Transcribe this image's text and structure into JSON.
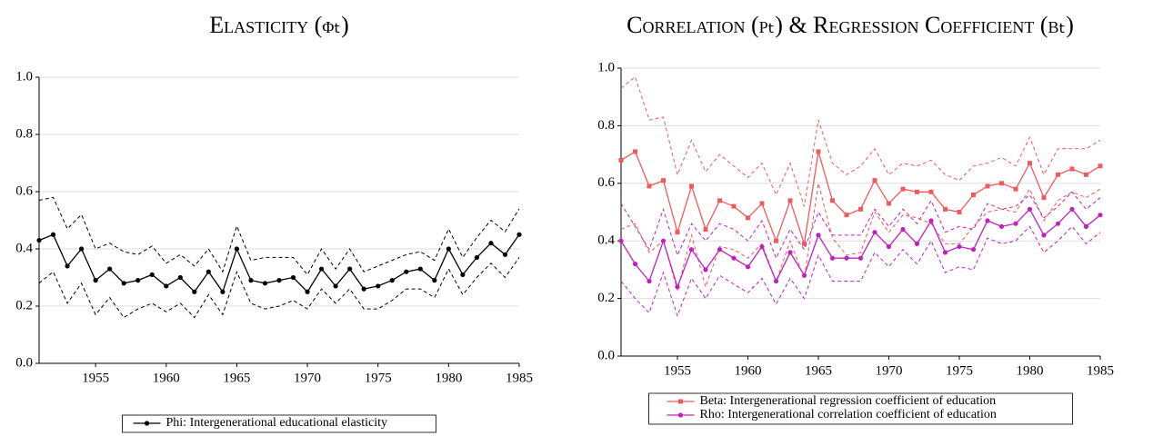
{
  "chart_data": [
    {
      "type": "line",
      "title": "Elasticity (ϕₜ)",
      "x": [
        1951,
        1952,
        1953,
        1954,
        1955,
        1956,
        1957,
        1958,
        1959,
        1960,
        1961,
        1962,
        1963,
        1964,
        1965,
        1966,
        1967,
        1968,
        1969,
        1970,
        1971,
        1972,
        1973,
        1974,
        1975,
        1976,
        1977,
        1978,
        1979,
        1980,
        1981,
        1982,
        1983,
        1984,
        1985
      ],
      "xlim": [
        1951,
        1985
      ],
      "xticks": [
        1955,
        1960,
        1965,
        1970,
        1975,
        1980,
        1985
      ],
      "ylim": [
        0,
        1
      ],
      "yticks": [
        {
          "value": 0,
          "label": "0.0"
        },
        0.2,
        0.4,
        0.6,
        0.8,
        {
          "value": 1,
          "label": "1.0"
        }
      ],
      "grid": true,
      "series": [
        {
          "name": "Phi: Intergenerational educational elasticity",
          "color": "#000000",
          "marker": "circle",
          "values": [
            0.43,
            0.45,
            0.34,
            0.4,
            0.29,
            0.33,
            0.28,
            0.29,
            0.31,
            0.27,
            0.3,
            0.25,
            0.32,
            0.25,
            0.4,
            0.29,
            0.28,
            0.29,
            0.3,
            0.25,
            0.33,
            0.27,
            0.33,
            0.26,
            0.27,
            0.29,
            0.32,
            0.33,
            0.29,
            0.4,
            0.31,
            0.37,
            0.42,
            0.38,
            0.45
          ],
          "upper": [
            0.57,
            0.58,
            0.47,
            0.52,
            0.4,
            0.42,
            0.39,
            0.38,
            0.41,
            0.35,
            0.38,
            0.34,
            0.4,
            0.32,
            0.48,
            0.36,
            0.37,
            0.37,
            0.37,
            0.31,
            0.4,
            0.33,
            0.4,
            0.32,
            0.34,
            0.36,
            0.38,
            0.39,
            0.36,
            0.47,
            0.37,
            0.44,
            0.5,
            0.46,
            0.54
          ],
          "lower": [
            0.28,
            0.32,
            0.21,
            0.28,
            0.17,
            0.23,
            0.16,
            0.19,
            0.21,
            0.18,
            0.21,
            0.16,
            0.24,
            0.17,
            0.32,
            0.21,
            0.19,
            0.2,
            0.22,
            0.19,
            0.26,
            0.21,
            0.26,
            0.19,
            0.19,
            0.22,
            0.26,
            0.26,
            0.23,
            0.33,
            0.24,
            0.3,
            0.35,
            0.3,
            0.37
          ]
        }
      ]
    },
    {
      "type": "line",
      "title": "Correlation (ρₜ) & Regression Coefficient (βₜ)",
      "x": [
        1951,
        1952,
        1953,
        1954,
        1955,
        1956,
        1957,
        1958,
        1959,
        1960,
        1961,
        1962,
        1963,
        1964,
        1965,
        1966,
        1967,
        1968,
        1969,
        1970,
        1971,
        1972,
        1973,
        1974,
        1975,
        1976,
        1977,
        1978,
        1979,
        1980,
        1981,
        1982,
        1983,
        1984,
        1985
      ],
      "xlim": [
        1951,
        1985
      ],
      "xticks": [
        1955,
        1960,
        1965,
        1970,
        1975,
        1980,
        1985
      ],
      "ylim": [
        0,
        1
      ],
      "yticks": [
        {
          "value": 0,
          "label": "0.0"
        },
        0.2,
        0.4,
        0.6,
        0.8,
        {
          "value": 1,
          "label": "1.0"
        }
      ],
      "grid": true,
      "series": [
        {
          "name": "Beta: Intergenerational regression coefficient of education",
          "color": "#f05a5a",
          "marker": "square",
          "values": [
            0.68,
            0.71,
            0.59,
            0.61,
            0.43,
            0.59,
            0.44,
            0.54,
            0.52,
            0.48,
            0.53,
            0.4,
            0.54,
            0.39,
            0.71,
            0.54,
            0.49,
            0.51,
            0.61,
            0.53,
            0.58,
            0.57,
            0.57,
            0.51,
            0.5,
            0.56,
            0.59,
            0.6,
            0.58,
            0.67,
            0.55,
            0.63,
            0.65,
            0.63,
            0.66
          ],
          "upper": [
            0.93,
            0.97,
            0.82,
            0.83,
            0.63,
            0.75,
            0.64,
            0.7,
            0.66,
            0.62,
            0.67,
            0.56,
            0.67,
            0.52,
            0.82,
            0.67,
            0.63,
            0.66,
            0.72,
            0.63,
            0.67,
            0.66,
            0.68,
            0.63,
            0.61,
            0.66,
            0.67,
            0.69,
            0.66,
            0.76,
            0.63,
            0.72,
            0.72,
            0.72,
            0.75
          ],
          "lower": [
            0.44,
            0.46,
            0.36,
            0.4,
            0.23,
            0.42,
            0.24,
            0.38,
            0.37,
            0.34,
            0.39,
            0.26,
            0.4,
            0.27,
            0.6,
            0.41,
            0.35,
            0.36,
            0.5,
            0.43,
            0.49,
            0.48,
            0.46,
            0.39,
            0.39,
            0.45,
            0.5,
            0.51,
            0.5,
            0.58,
            0.47,
            0.54,
            0.57,
            0.55,
            0.58
          ]
        },
        {
          "name": "Rho: Intergenerational correlation coefficient of education",
          "color": "#c020c0",
          "marker": "circle",
          "values": [
            0.4,
            0.32,
            0.26,
            0.4,
            0.24,
            0.37,
            0.3,
            0.37,
            0.34,
            0.31,
            0.38,
            0.26,
            0.36,
            0.28,
            0.42,
            0.34,
            0.34,
            0.34,
            0.43,
            0.38,
            0.44,
            0.39,
            0.47,
            0.36,
            0.38,
            0.37,
            0.47,
            0.45,
            0.46,
            0.51,
            0.42,
            0.46,
            0.51,
            0.45,
            0.49
          ],
          "upper": [
            0.53,
            0.45,
            0.37,
            0.51,
            0.35,
            0.46,
            0.4,
            0.46,
            0.44,
            0.4,
            0.47,
            0.34,
            0.44,
            0.37,
            0.5,
            0.42,
            0.42,
            0.42,
            0.51,
            0.45,
            0.51,
            0.46,
            0.54,
            0.43,
            0.45,
            0.44,
            0.53,
            0.51,
            0.52,
            0.56,
            0.48,
            0.52,
            0.57,
            0.51,
            0.55
          ],
          "lower": [
            0.26,
            0.2,
            0.15,
            0.29,
            0.14,
            0.27,
            0.2,
            0.28,
            0.25,
            0.22,
            0.27,
            0.18,
            0.27,
            0.2,
            0.35,
            0.26,
            0.26,
            0.26,
            0.36,
            0.31,
            0.37,
            0.32,
            0.4,
            0.29,
            0.31,
            0.3,
            0.41,
            0.39,
            0.4,
            0.45,
            0.36,
            0.4,
            0.45,
            0.39,
            0.43
          ]
        }
      ]
    }
  ]
}
